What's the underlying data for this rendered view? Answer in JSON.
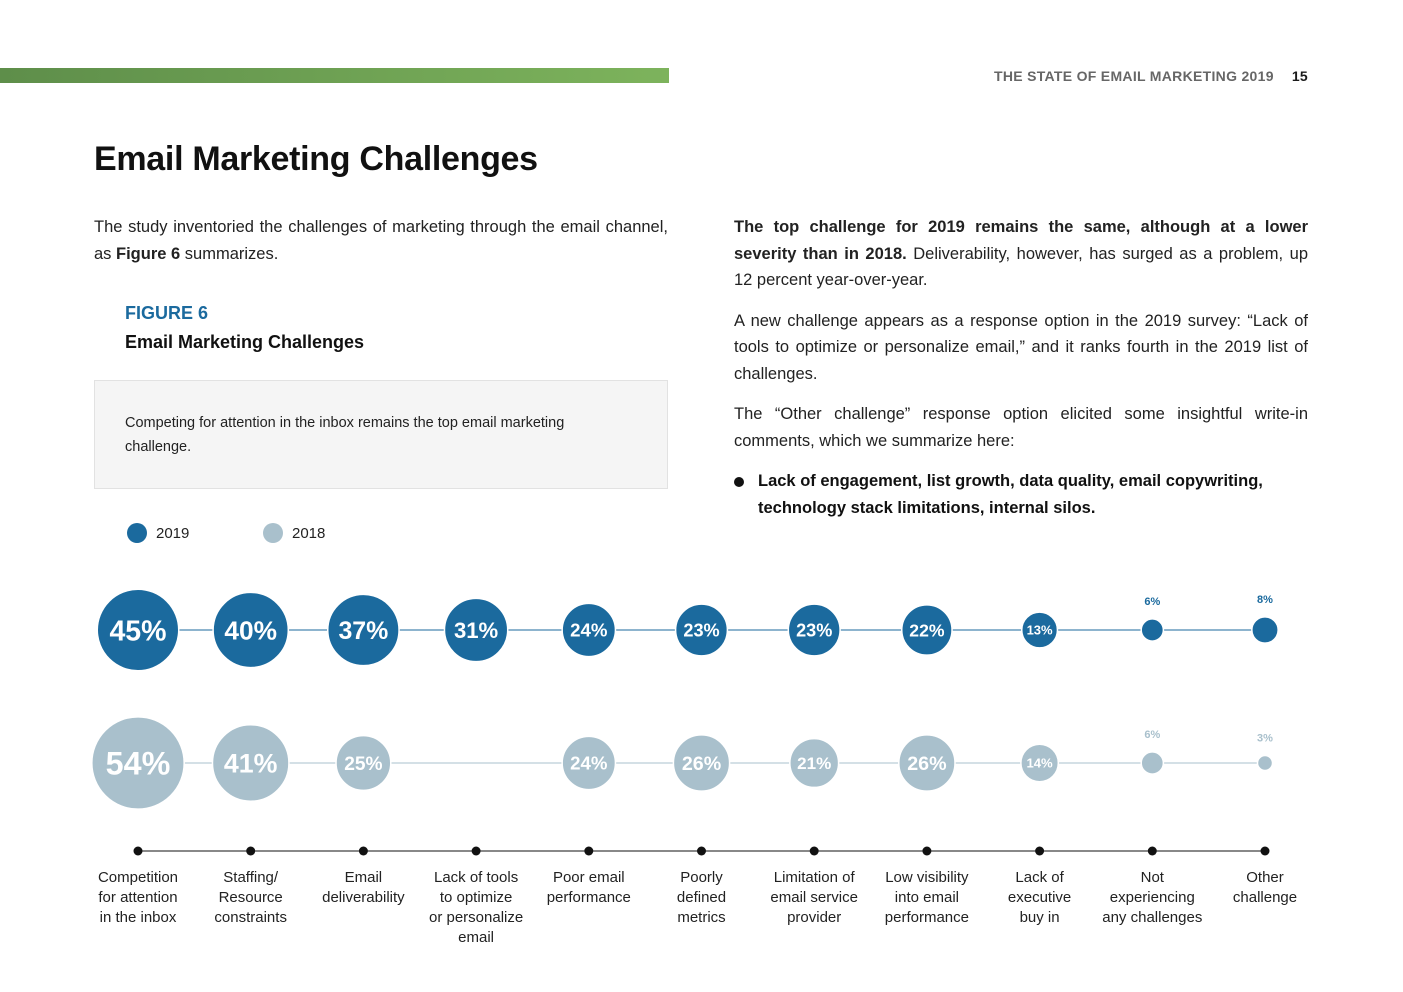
{
  "header": {
    "running_title": "THE STATE OF EMAIL MARKETING 2019",
    "page_number": "15"
  },
  "page_title": "Email Marketing Challenges",
  "intro": {
    "text_before": "The study inventoried the challenges of marketing through the email channel, as ",
    "bold": "Figure 6",
    "text_after": " summarizes."
  },
  "figure": {
    "label": "FIGURE 6",
    "title": "Email Marketing Challenges",
    "callout": "Competing for attention in the inbox remains the top email marketing challenge."
  },
  "right_column": {
    "p1_bold": "The top challenge for 2019 remains the same, although at a lower severity than in 2018.",
    "p1_rest": " Deliverability, however, has surged as a problem, up 12 percent year-over-year.",
    "p2": "A new challenge appears as a response option in the 2019 survey: “Lack of tools to optimize or personalize email,” and it ranks fourth in the 2019 list of challenges.",
    "p3": "The “Other challenge” response option elicited some insightful write-in comments, which we summarize here:",
    "bullet": "Lack of engagement, list growth, data quality, email copywriting, technology stack limitations, internal silos."
  },
  "legend": {
    "items": [
      {
        "label": "2019",
        "color": "#1b6a9e"
      },
      {
        "label": "2018",
        "color": "#a9c0cc"
      }
    ]
  },
  "chart_data": {
    "type": "bubble",
    "title": "Email Marketing Challenges",
    "value_unit": "%",
    "categories": [
      "Competition for attention in the inbox",
      "Staffing/ Resource constraints",
      "Email deliverability",
      "Lack of tools to optimize or personalize email",
      "Poor email performance",
      "Poorly defined metrics",
      "Limitation of email service provider",
      "Low visibility into email performance",
      "Lack of executive buy in",
      "Not experiencing any challenges",
      "Other challenge"
    ],
    "category_label_lines": [
      [
        "Competition",
        "for attention",
        "in the inbox"
      ],
      [
        "Staffing/",
        "Resource",
        "constraints"
      ],
      [
        "Email",
        "deliverability"
      ],
      [
        "Lack of tools",
        "to optimize",
        "or personalize",
        "email"
      ],
      [
        "Poor email",
        "performance"
      ],
      [
        "Poorly",
        "defined",
        "metrics"
      ],
      [
        "Limitation of",
        "email service",
        "provider"
      ],
      [
        "Low visibility",
        "into email",
        "performance"
      ],
      [
        "Lack of",
        "executive",
        "buy in"
      ],
      [
        "Not",
        "experiencing",
        "any challenges"
      ],
      [
        "Other",
        "challenge"
      ]
    ],
    "series": [
      {
        "name": "2019",
        "color": "#1b6a9e",
        "values": [
          45,
          40,
          37,
          31,
          24,
          23,
          23,
          22,
          13,
          6,
          8
        ]
      },
      {
        "name": "2018",
        "color": "#a9c0cc",
        "values": [
          54,
          41,
          25,
          null,
          24,
          26,
          21,
          26,
          14,
          6,
          3
        ]
      }
    ]
  }
}
